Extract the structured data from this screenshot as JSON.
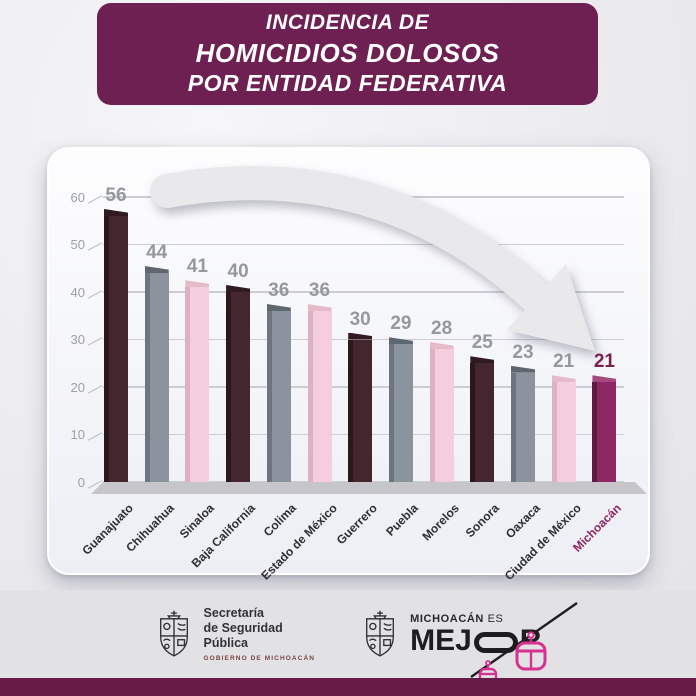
{
  "header": {
    "line1": "INCIDENCIA DE",
    "line2": "HOMICIDIOS DOLOSOS",
    "line3": "POR ENTIDAD FEDERATIVA"
  },
  "chart_data": {
    "type": "bar",
    "title": "Incidencia de homicidios dolosos por entidad federativa",
    "categories": [
      "Guanajuato",
      "Chihuahua",
      "Sinaloa",
      "Baja California",
      "Colima",
      "Estado de México",
      "Guerrero",
      "Puebla",
      "Morelos",
      "Sonora",
      "Oaxaca",
      "Ciudad de México",
      "Michoacán"
    ],
    "values": [
      56,
      44,
      41,
      40,
      36,
      36,
      30,
      29,
      28,
      25,
      23,
      21,
      21
    ],
    "bar_colors": [
      "maroon",
      "gray",
      "pink",
      "maroon",
      "gray",
      "pink",
      "maroon",
      "gray",
      "pink",
      "maroon",
      "gray",
      "pink",
      "highlight"
    ],
    "palette": {
      "maroon": {
        "front": "#44262e",
        "side": "#2b171c",
        "top": "#311b22"
      },
      "gray": {
        "front": "#8b949e",
        "side": "#6d7680",
        "top": "#5e6770"
      },
      "pink": {
        "front": "#f4cede",
        "side": "#ddb1c1",
        "top": "#e6bac9"
      },
      "highlight": {
        "front": "#8c2963",
        "side": "#5f1a42",
        "top": "#a44a7e"
      }
    },
    "xlabel": "",
    "ylabel": "",
    "ylim": [
      0,
      60
    ],
    "yticks": [
      0,
      10,
      20,
      30,
      40,
      50,
      60
    ],
    "grid": true,
    "legend": false,
    "value_label_color": "#95999e",
    "highlight_value_label_color": "#7b1f50",
    "category_label_color": "#2f2f33",
    "highlight_category_label_color": "#8e2663",
    "highlight_category": "Michoacán",
    "annotation": {
      "type": "curved-arrow",
      "points_to": "Michoacán"
    }
  },
  "footer": {
    "left_logo": {
      "org_lines": [
        "Secretaría",
        "de Seguridad",
        "Pública"
      ],
      "subline": "GOBIERNO DE MICHOACÁN"
    },
    "right_logo": {
      "tagline_bold": "MICHOACÁN",
      "tagline_light": " ES",
      "wordmark_start": "MEJ",
      "wordmark_end": "R"
    }
  },
  "colors": {
    "banner_bg": "#6e2053",
    "bottom_bar": "#671c48",
    "footer_bg": "#e2e2e5",
    "grid_line": "#cbcdd3",
    "axis_label": "#9aa0a8",
    "arrow_fill": "#e9e9ec",
    "logo_pink": "#d63190",
    "logo_ink": "#1d1d1f"
  }
}
